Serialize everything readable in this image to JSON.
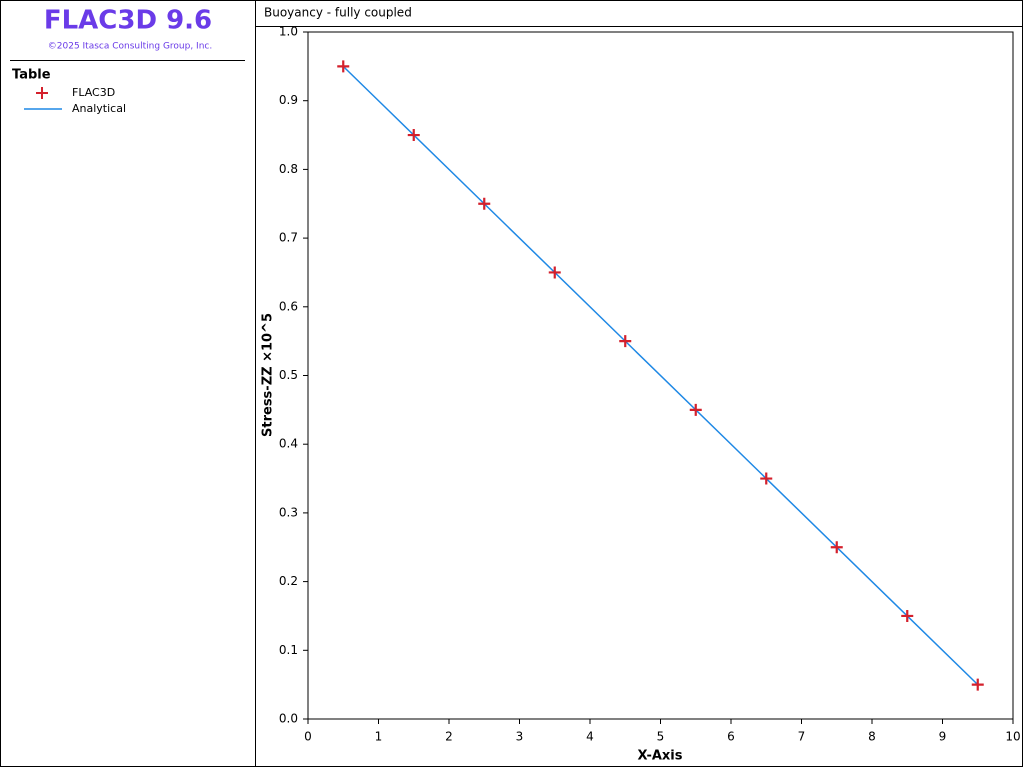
{
  "app": {
    "title": "FLAC3D 9.6",
    "copyright": "©2025 Itasca Consulting Group, Inc.",
    "legend_title": "Table"
  },
  "chart_data": {
    "type": "scatter",
    "title": "Buoyancy - fully coupled",
    "x_label": "X-Axis",
    "y_label": "Stress-ZZ ×10^5",
    "xlim": [
      0,
      10
    ],
    "ylim": [
      0,
      1
    ],
    "xticks": [
      0,
      1,
      2,
      3,
      4,
      5,
      6,
      7,
      8,
      9,
      10
    ],
    "yticks": [
      {
        "value": 0,
        "label": "0.0"
      },
      0.1,
      0.2,
      0.3,
      0.4,
      0.5,
      0.6,
      0.7,
      0.8,
      0.9,
      {
        "value": 1,
        "label": "1.0"
      }
    ],
    "grid": false,
    "series": [
      {
        "name": "FLAC3D",
        "type": "scatter",
        "color": "#d4202c",
        "x": [
          0.5,
          1.5,
          2.5,
          3.5,
          4.5,
          5.5,
          6.5,
          7.5,
          8.5,
          9.5
        ],
        "values": [
          0.95,
          0.85,
          0.75,
          0.65,
          0.55,
          0.45,
          0.35,
          0.25,
          0.15,
          0.05
        ]
      },
      {
        "name": "Analytical",
        "type": "line",
        "color": "#1e88e5",
        "x": [
          0.5,
          9.5
        ],
        "values": [
          0.95,
          0.05
        ]
      }
    ]
  }
}
